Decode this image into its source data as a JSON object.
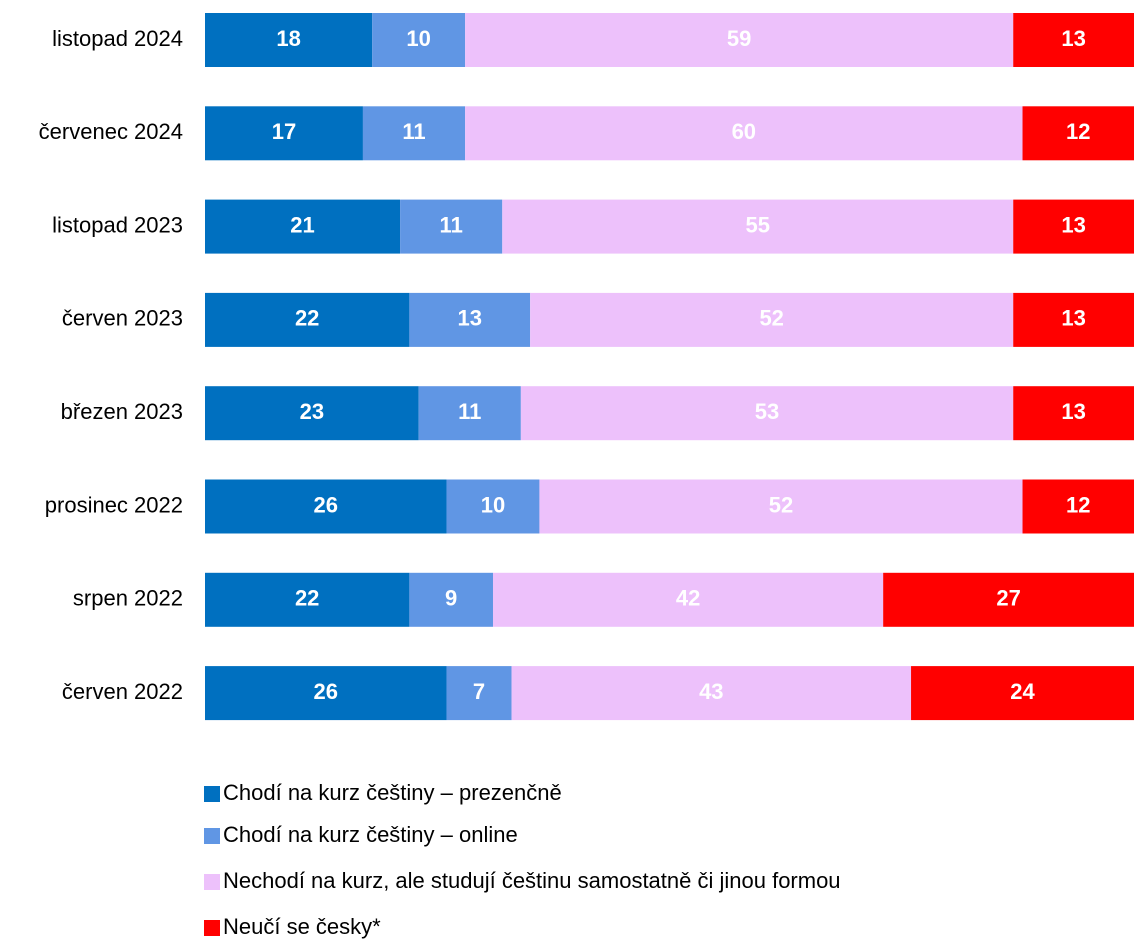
{
  "chart_data": {
    "type": "stacked_bar_horizontal",
    "categories": [
      "listopad 2024",
      "červenec 2024",
      "listopad 2023",
      "červen 2023",
      "březen 2023",
      "prosinec 2022",
      "srpen 2022",
      "červen 2022"
    ],
    "series": [
      {
        "name": "Chodí na kurz češtiny – prezenčně",
        "color": "#0070c0",
        "values": [
          18,
          17,
          21,
          22,
          23,
          26,
          22,
          26
        ]
      },
      {
        "name": "Chodí na kurz češtiny – online",
        "color": "#6096e4",
        "values": [
          10,
          11,
          11,
          13,
          11,
          10,
          9,
          7
        ]
      },
      {
        "name": "Nechodí na kurz, ale studují češtinu samostatně či jinou formou",
        "color": "#edc1fb",
        "values": [
          59,
          60,
          55,
          52,
          53,
          52,
          42,
          43
        ]
      },
      {
        "name": "Neučí se česky*",
        "color": "#ff0000",
        "values": [
          13,
          12,
          13,
          13,
          13,
          12,
          27,
          24
        ]
      }
    ],
    "xlim": [
      0,
      100
    ],
    "legend": "bottom"
  }
}
